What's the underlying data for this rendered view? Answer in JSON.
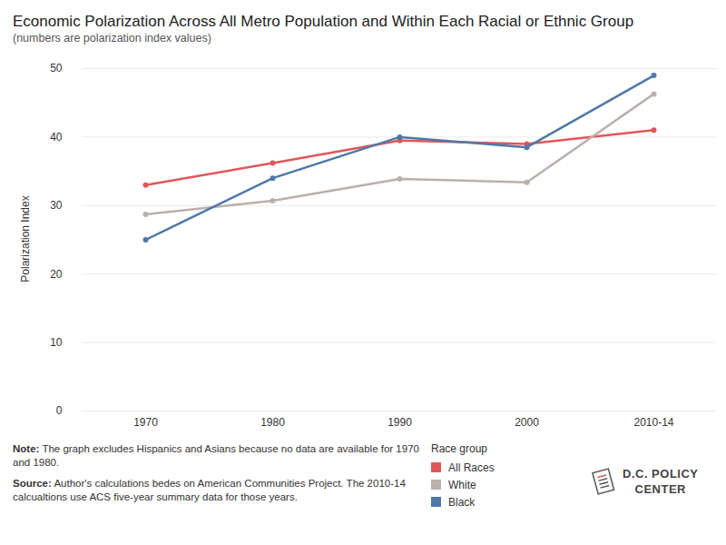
{
  "chart_data": {
    "type": "line",
    "title": "Economic Polarization Across All Metro Population and Within Each Racial or Ethnic Group",
    "subtitle": "(numbers are polarization index values)",
    "y_label": "Polarization Index",
    "categories": [
      "1970",
      "1980",
      "1990",
      "2000",
      "2010-14"
    ],
    "series": [
      {
        "name": "All Races",
        "color": "#e15759",
        "values": [
          33,
          36.2,
          39.5,
          39,
          41
        ]
      },
      {
        "name": "White",
        "color": "#bab0ac",
        "values": [
          28.7,
          30.7,
          33.9,
          33.4,
          46.3
        ]
      },
      {
        "name": "Black",
        "color": "#4e79a7",
        "values": [
          25,
          34,
          40,
          38.5,
          49
        ]
      }
    ],
    "ylim": [
      0,
      50
    ],
    "yticks": [
      0,
      10,
      20,
      30,
      40,
      50
    ],
    "grid": true,
    "marker": "circle",
    "legend": "bottom-right",
    "legend_title": "Race group",
    "note": {
      "label": "Note:",
      "text": "The graph excludes Hispanics and Asians because no data are available for 1970 and 1980."
    },
    "source": {
      "label": "Source:",
      "text": "Author's calculations bedes on American Communities Project. The 2010-14 calcualtions use ACS five-year summary data for those years."
    },
    "logo": [
      "D.C. POLICY",
      "CENTER"
    ]
  }
}
